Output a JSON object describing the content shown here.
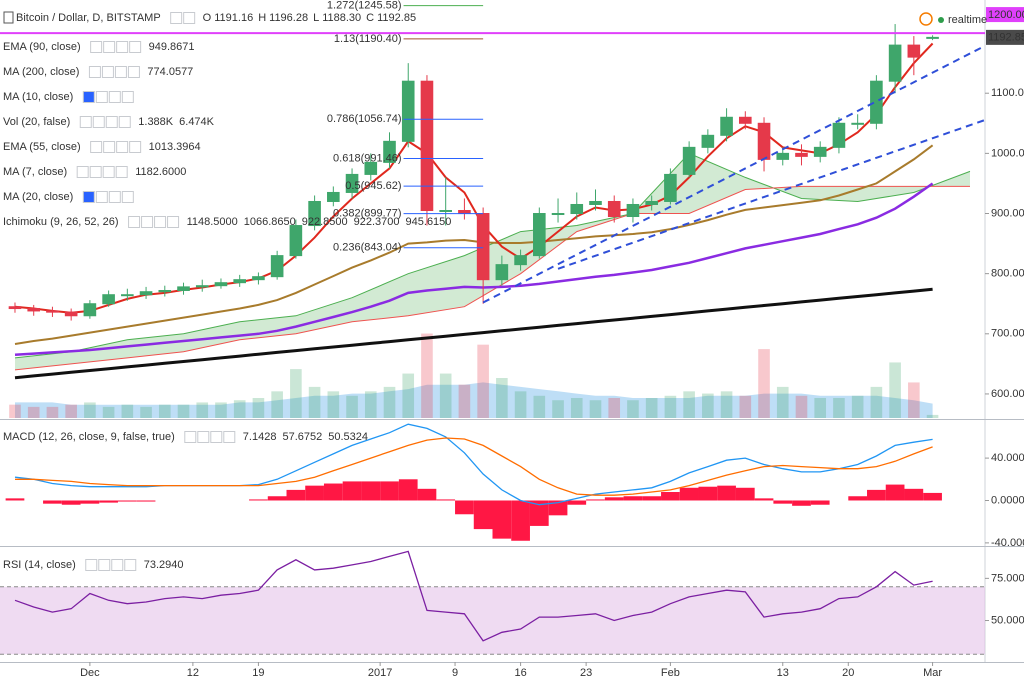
{
  "chart_data": [
    {
      "type": "candlestick",
      "title": "Bitcoin / Dollar, D, BITSTAMP",
      "ohlc_letters": [
        "O",
        "H",
        "L",
        "C"
      ],
      "low_label": "1188.30",
      "realtime": "realtime",
      "x": [
        -8,
        -6,
        -4,
        -2,
        0,
        2,
        4,
        6,
        8,
        10,
        12,
        14,
        16,
        18,
        20,
        22,
        24,
        26,
        28,
        30,
        32,
        34,
        36,
        38,
        40,
        42,
        44,
        46,
        48,
        50,
        52,
        54,
        56,
        58,
        60,
        62,
        64,
        66,
        68,
        70,
        72,
        74,
        76,
        78,
        80,
        82,
        84,
        86,
        88,
        90
      ],
      "xlim": [
        -9.6,
        95.6
      ],
      "open": [
        745,
        742,
        738,
        736,
        730,
        750,
        765,
        765,
        770,
        772,
        778,
        780,
        785,
        790,
        795,
        830,
        880,
        920,
        935,
        965,
        985,
        1020,
        1120,
        905,
        905,
        900,
        790,
        815,
        830,
        900,
        900,
        915,
        920,
        895,
        915,
        920,
        965,
        1010,
        1030,
        1060,
        1050,
        990,
        1000,
        995,
        1010,
        1050,
        1050,
        1120,
        1180,
        1191.16
      ],
      "high": [
        752,
        748,
        745,
        742,
        756,
        772,
        775,
        778,
        780,
        785,
        790,
        792,
        798,
        802,
        838,
        890,
        930,
        945,
        975,
        1000,
        1035,
        1150,
        1130,
        960,
        925,
        910,
        830,
        840,
        910,
        925,
        935,
        940,
        930,
        925,
        930,
        975,
        1020,
        1040,
        1075,
        1070,
        1060,
        1010,
        1015,
        1020,
        1060,
        1065,
        1130,
        1215,
        1195,
        1196.28
      ],
      "low": [
        735,
        730,
        728,
        722,
        725,
        745,
        755,
        758,
        762,
        765,
        770,
        775,
        778,
        782,
        790,
        825,
        872,
        912,
        925,
        955,
        975,
        1010,
        880,
        880,
        890,
        750,
        780,
        805,
        825,
        885,
        890,
        905,
        885,
        885,
        905,
        915,
        960,
        1000,
        1020,
        1040,
        970,
        980,
        980,
        985,
        1000,
        1040,
        1040,
        1100,
        1130,
        1188.3
      ],
      "close": [
        742,
        738,
        736,
        730,
        750,
        765,
        765,
        770,
        772,
        778,
        780,
        785,
        790,
        795,
        830,
        880,
        920,
        935,
        965,
        985,
        1020,
        1120,
        905,
        905,
        900,
        790,
        815,
        830,
        900,
        900,
        915,
        920,
        895,
        915,
        920,
        965,
        1010,
        1030,
        1060,
        1050,
        990,
        1000,
        995,
        1010,
        1050,
        1050,
        1120,
        1180,
        1160,
        1192.85
      ],
      "up_color": "#3fa66b",
      "down_color": "#e5394a",
      "ylim": [
        560,
        1255
      ],
      "yticks": [
        {
          "value": 600,
          "label": "600.00"
        },
        {
          "value": 700,
          "label": "700.00"
        },
        {
          "value": 800,
          "label": "800.00"
        },
        {
          "value": 900,
          "label": "900.00"
        },
        {
          "value": 1000,
          "label": "1000.00"
        },
        {
          "value": 1100,
          "label": "1100.00"
        }
      ],
      "hline": {
        "value": 1200,
        "label": "1200.00",
        "color": "#e040fb"
      },
      "last_color": "#4a4a4a",
      "lines": [
        {
          "color": "#8a2be2",
          "width": 2.5,
          "values": [
            665,
            667,
            669,
            671,
            673,
            676,
            679,
            682,
            685,
            688,
            691,
            694,
            697,
            700,
            705,
            712,
            720,
            728,
            736,
            745,
            755,
            768,
            772,
            775,
            778,
            777,
            778,
            780,
            783,
            787,
            791,
            795,
            798,
            802,
            806,
            812,
            818,
            826,
            834,
            842,
            848,
            854,
            860,
            866,
            874,
            882,
            893,
            908,
            928,
            949.8671
          ]
        },
        {
          "color": "#111111",
          "width": 3,
          "values": [
            627,
            630,
            633,
            636,
            639,
            642,
            645,
            648,
            651,
            654,
            657,
            660,
            663,
            666,
            669,
            672,
            675,
            678,
            681,
            684,
            687,
            690,
            693,
            696,
            699,
            702,
            705,
            708,
            711,
            714,
            717,
            720,
            723,
            726,
            729,
            732,
            735,
            738,
            741,
            744,
            747,
            750,
            753,
            756,
            759,
            762,
            765,
            768,
            771,
            774.0577
          ]
        },
        {
          "color": "#a87b2c",
          "width": 2,
          "values": [
            683,
            688,
            692,
            697,
            702,
            707,
            712,
            717,
            722,
            727,
            732,
            737,
            742,
            748,
            756,
            768,
            782,
            796,
            810,
            822,
            835,
            850,
            852,
            855,
            856,
            852,
            851,
            851,
            853,
            856,
            859,
            862,
            864,
            866,
            869,
            874,
            881,
            889,
            898,
            906,
            910,
            914,
            918,
            922,
            930,
            940,
            950,
            970,
            990,
            1013.3964
          ]
        },
        {
          "color": "#e0281e",
          "width": 2,
          "values": [
            745,
            742,
            738,
            735,
            738,
            748,
            758,
            765,
            768,
            773,
            777,
            782,
            786,
            792,
            805,
            830,
            860,
            895,
            925,
            950,
            975,
            1020,
            1000,
            960,
            935,
            880,
            845,
            825,
            845,
            870,
            895,
            910,
            905,
            907,
            915,
            930,
            960,
            995,
            1025,
            1045,
            1035,
            1010,
            1005,
            1000,
            1015,
            1035,
            1065,
            1110,
            1150,
            1182.6
          ]
        }
      ],
      "volume": {
        "values": [
          6,
          5,
          5,
          6,
          7,
          5,
          6,
          5,
          6,
          6,
          7,
          7,
          8,
          9,
          12,
          22,
          14,
          12,
          10,
          12,
          14,
          20,
          38,
          20,
          15,
          33,
          18,
          12,
          10,
          8,
          9,
          8,
          9,
          8,
          9,
          10,
          12,
          11,
          12,
          10,
          31,
          14,
          10,
          9,
          9,
          10,
          14,
          25,
          16,
          1.388
        ],
        "ma": [
          7,
          7,
          7,
          6,
          6,
          6,
          6,
          6,
          6,
          6,
          6,
          6,
          7,
          7,
          8,
          9,
          10,
          10,
          11,
          11,
          12,
          13,
          15,
          15,
          15,
          16,
          15,
          14,
          13,
          12,
          11,
          10,
          10,
          9,
          9,
          9,
          9,
          10,
          10,
          10,
          11,
          11,
          11,
          10,
          10,
          10,
          10,
          9,
          8,
          6.474
        ],
        "vlim": [
          0,
          45
        ],
        "ma_color": "#6fb6ea"
      },
      "ichimoku": {
        "x": [
          -8,
          -2,
          4,
          10,
          16,
          22,
          28,
          34,
          40,
          46,
          52,
          58,
          64,
          70,
          76,
          82,
          88,
          94
        ],
        "span_a": [
          660,
          670,
          690,
          700,
          720,
          730,
          760,
          800,
          830,
          870,
          880,
          900,
          1000,
          960,
          925,
          920,
          935,
          970
        ],
        "span_b": [
          640,
          650,
          660,
          670,
          690,
          700,
          720,
          730,
          745,
          800,
          870,
          900,
          900,
          940,
          945,
          945,
          945,
          945
        ],
        "a_color": "#4caf50",
        "b_color": "#ef5350",
        "cloud_color": "#a5d6a7"
      },
      "fib": [
        {
          "value": 1245.58,
          "label": "1.272(1245.58)",
          "color": "#4caf50"
        },
        {
          "value": 1190.4,
          "label": "1.13(1190.40)",
          "color": "#a0522d"
        },
        {
          "value": 1056.74,
          "label": "0.786(1056.74)",
          "color": "#2962ff"
        },
        {
          "value": 991.46,
          "label": "0.618(991.46)",
          "color": "#2962ff"
        },
        {
          "value": 945.62,
          "label": "0.5(945.62)",
          "color": "#2962ff"
        },
        {
          "value": 899.77,
          "label": "0.382(899.77)",
          "color": "#2962ff"
        },
        {
          "value": 843.04,
          "label": "0.236(843.04)",
          "color": "#2962ff"
        }
      ],
      "fib_x": [
        33.5,
        42
      ],
      "trendlines": [
        {
          "x": [
            42,
            95.5
          ],
          "y": [
            752,
            1178
          ]
        },
        {
          "x": [
            50,
            95.5
          ],
          "y": [
            808,
            1055
          ]
        }
      ],
      "trend_color": "#2f4fd8",
      "legend": [
        {
          "name": "EMA (90, close)",
          "values": [
            "949.8671"
          ],
          "colors": [
            "#7b1fa2"
          ]
        },
        {
          "name": "MA (200, close)",
          "values": [
            "774.0577"
          ],
          "colors": [
            "#222222"
          ]
        },
        {
          "name": "MA (10, close)",
          "muted": true
        },
        {
          "name": "Vol (20, false)",
          "values": [
            "1.388K",
            "6.474K"
          ],
          "colors": [
            "#1b9a3f",
            "#1e88e5"
          ]
        },
        {
          "name": "EMA (55, close)",
          "values": [
            "1013.3964"
          ],
          "colors": [
            "#8b5a2b"
          ]
        },
        {
          "name": "MA (7, close)",
          "values": [
            "1182.6000"
          ],
          "colors": [
            "#e53935"
          ]
        },
        {
          "name": "MA (20, close)",
          "muted": true
        },
        {
          "name": "Ichimoku (9, 26, 52, 26)",
          "values": [
            "1148.5000",
            "1066.8650",
            "922.8500",
            "922.3700",
            "945.6150"
          ],
          "colors": [
            "#1e88e5",
            "#8b1a1a",
            "#43a047",
            "#2e7d32",
            "#e53935"
          ]
        }
      ]
    },
    {
      "type": "macd",
      "title": "MACD (12, 26, close, 9, false, true)",
      "histogram": {
        "color": "#ff1744",
        "values": [
          2,
          0,
          -3,
          -4,
          -3,
          -2,
          -1,
          -1,
          0,
          0,
          0,
          0,
          0,
          1,
          4,
          10,
          14,
          16,
          18,
          18,
          18,
          20,
          11,
          1,
          -13,
          -27,
          -36,
          -38,
          -24,
          -14,
          -4,
          1,
          3,
          4,
          4,
          8,
          12,
          13,
          14,
          12,
          2,
          -3,
          -5,
          -4,
          0,
          4,
          10,
          15,
          11,
          7.1428
        ]
      },
      "macd": {
        "color": "#2196f3",
        "values": [
          22,
          20,
          16,
          14,
          13,
          13,
          13,
          13,
          14,
          14,
          14,
          14,
          14,
          15,
          20,
          28,
          36,
          44,
          52,
          58,
          64,
          72,
          68,
          60,
          45,
          25,
          10,
          0,
          -4,
          -2,
          2,
          6,
          8,
          10,
          12,
          18,
          26,
          32,
          38,
          40,
          34,
          30,
          27,
          27,
          30,
          34,
          42,
          52,
          55,
          57.6752
        ]
      },
      "signal": {
        "color": "#ff6d00",
        "values": [
          20,
          20,
          19,
          18,
          16,
          15,
          14,
          14,
          14,
          14,
          14,
          14,
          14,
          14,
          16,
          18,
          22,
          28,
          34,
          40,
          46,
          52,
          57,
          59,
          58,
          52,
          42,
          32,
          20,
          12,
          6,
          5,
          5,
          6,
          8,
          10,
          14,
          19,
          24,
          28,
          32,
          33,
          32,
          31,
          30,
          30,
          32,
          37,
          44,
          50.5324
        ]
      },
      "ylim": [
        -42,
        75
      ],
      "yticks": [
        {
          "value": 40,
          "label": "40.0000"
        },
        {
          "value": 0,
          "label": "0.0000"
        },
        {
          "value": -40,
          "label": "-40.0000"
        }
      ]
    },
    {
      "type": "line",
      "title": "RSI (14, close)",
      "value_label": "73.2940",
      "color": "#7b1fa2",
      "values": [
        62,
        58,
        55,
        57,
        66,
        62,
        60,
        61,
        63,
        64,
        63,
        65,
        66,
        68,
        80,
        86,
        80,
        81,
        83,
        85,
        88,
        91,
        56,
        55,
        54,
        38,
        43,
        45,
        52,
        52,
        53,
        54,
        50,
        53,
        55,
        60,
        64,
        66,
        68,
        67,
        52,
        54,
        55,
        57,
        63,
        64,
        70,
        79,
        71,
        73.294
      ],
      "ylim": [
        26,
        93
      ],
      "yticks": [
        {
          "value": 75,
          "label": "75.0000"
        },
        {
          "value": 50,
          "label": "50.0000"
        }
      ],
      "bands": [
        30,
        70
      ],
      "band_color": "#e1bee7",
      "xticks": [
        {
          "value": 0,
          "label": "Dec"
        },
        {
          "value": 11,
          "label": "12"
        },
        {
          "value": 18,
          "label": "19"
        },
        {
          "value": 31,
          "label": "2017"
        },
        {
          "value": 39,
          "label": "9"
        },
        {
          "value": 46,
          "label": "16"
        },
        {
          "value": 53,
          "label": "23"
        },
        {
          "value": 62,
          "label": "Feb"
        },
        {
          "value": 74,
          "label": "13"
        },
        {
          "value": 81,
          "label": "20"
        },
        {
          "value": 90,
          "label": "Mar"
        }
      ]
    }
  ]
}
